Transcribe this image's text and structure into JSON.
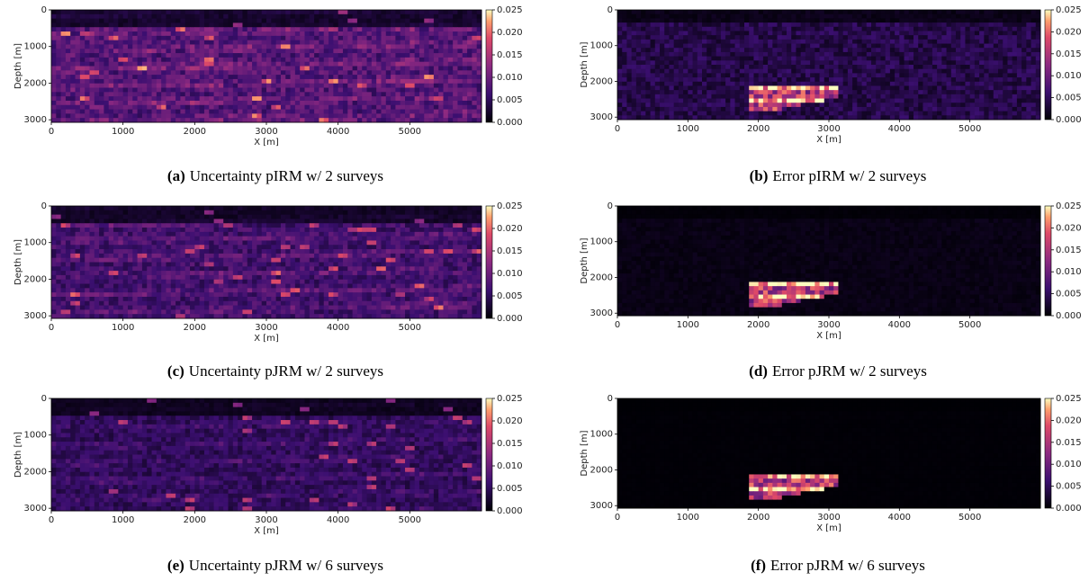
{
  "axes": {
    "xlabel": "X [m]",
    "ylabel": "Depth [m]",
    "xlim": [
      0,
      6000
    ],
    "ylim": [
      0,
      3070
    ],
    "xticks": [
      0,
      1000,
      2000,
      3000,
      4000,
      5000
    ],
    "yticks": [
      0,
      1000,
      2000,
      3000
    ],
    "colormap": "magma",
    "clim": [
      0,
      0.025
    ],
    "cticks": [
      {
        "value": 0,
        "label": "0.000"
      },
      0.005,
      {
        "value": 0.01,
        "label": "0.010"
      },
      0.015,
      {
        "value": 0.02,
        "label": "0.020"
      },
      0.025
    ]
  },
  "panels": [
    {
      "label": "(a)",
      "caption": "Uncertainty pIRM w/ 2 surveys"
    },
    {
      "label": "(b)",
      "caption": "Error pIRM w/ 2 surveys"
    },
    {
      "label": "(c)",
      "caption": "Uncertainty pJRM w/ 2 surveys"
    },
    {
      "label": "(d)",
      "caption": "Error pJRM w/ 2 surveys"
    },
    {
      "label": "(e)",
      "caption": "Uncertainty pJRM w/ 6 surveys"
    },
    {
      "label": "(f)",
      "caption": "Error pJRM w/ 6 surveys"
    }
  ]
}
